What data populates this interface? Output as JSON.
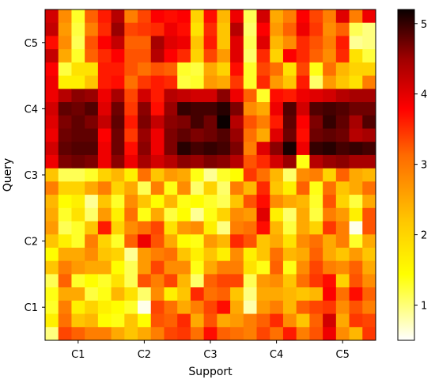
{
  "chart_data": {
    "type": "heatmap",
    "title": "",
    "xlabel": "Support",
    "ylabel": "Query",
    "x_tick_labels": [
      "C1",
      "C2",
      "C3",
      "C4",
      "C5"
    ],
    "y_tick_labels": [
      "C5",
      "C4",
      "C3",
      "C2",
      "C1"
    ],
    "colormap": "hot_r",
    "colorbar": {
      "min": 0.5,
      "max": 5.2,
      "ticks": [
        1,
        2,
        3,
        4,
        5
      ]
    },
    "grid": false,
    "legend": "colorbar-right",
    "rows": 25,
    "cols": 25,
    "values": [
      [
        3.8,
        2.5,
        1.5,
        2.8,
        3.3,
        4.0,
        2.6,
        3.0,
        3.5,
        3.4,
        3.5,
        2.0,
        3.4,
        2.2,
        3.6,
        1.3,
        3.8,
        2.3,
        2.6,
        3.5,
        3.0,
        2.6,
        3.7,
        2.6,
        3.6
      ],
      [
        3.9,
        2.4,
        1.4,
        2.6,
        3.2,
        4.2,
        3.0,
        3.1,
        3.2,
        3.6,
        3.4,
        1.9,
        3.2,
        2.1,
        4.0,
        1.2,
        3.5,
        2.4,
        2.8,
        3.6,
        3.1,
        2.5,
        2.8,
        1.3,
        1.1
      ],
      [
        3.4,
        2.5,
        1.3,
        2.9,
        3.5,
        3.9,
        2.8,
        2.8,
        4.1,
        3.7,
        3.6,
        2.1,
        3.3,
        2.1,
        3.7,
        1.3,
        3.7,
        2.2,
        2.5,
        3.2,
        2.9,
        2.6,
        3.3,
        1.0,
        1.1
      ],
      [
        3.9,
        2.3,
        1.5,
        2.8,
        3.2,
        3.5,
        2.9,
        2.9,
        4.0,
        3.5,
        3.2,
        2.0,
        3.0,
        2.4,
        3.7,
        1.2,
        3.2,
        2.0,
        3.5,
        3.2,
        2.8,
        2.5,
        3.2,
        1.9,
        1.4
      ],
      [
        3.5,
        1.4,
        1.9,
        1.9,
        3.3,
        3.3,
        2.9,
        2.7,
        2.9,
        2.8,
        1.5,
        1.4,
        2.3,
        2.0,
        3.4,
        1.5,
        3.0,
        2.7,
        1.9,
        3.0,
        1.6,
        2.7,
        2.2,
        2.0,
        2.0
      ],
      [
        3.6,
        1.8,
        1.8,
        2.1,
        3.3,
        3.4,
        2.7,
        3.1,
        3.3,
        3.2,
        1.4,
        1.5,
        2.4,
        2.3,
        3.1,
        1.5,
        3.2,
        2.4,
        2.1,
        3.3,
        1.2,
        2.4,
        2.1,
        1.9,
        2.6
      ],
      [
        3.6,
        4.0,
        4.3,
        4.2,
        3.6,
        4.1,
        3.0,
        3.8,
        3.3,
        4.0,
        3.9,
        3.8,
        3.8,
        4.3,
        3.6,
        2.8,
        1.5,
        3.4,
        3.3,
        3.6,
        3.7,
        3.8,
        4.0,
        4.1,
        4.1
      ],
      [
        3.8,
        4.6,
        4.5,
        4.7,
        3.7,
        4.5,
        3.1,
        4.3,
        3.4,
        4.2,
        4.9,
        4.8,
        4.8,
        5.0,
        4.4,
        2.5,
        2.3,
        3.6,
        4.7,
        3.8,
        4.7,
        4.8,
        4.7,
        4.5,
        4.5
      ],
      [
        3.7,
        4.4,
        4.6,
        4.4,
        3.9,
        4.6,
        3.3,
        4.4,
        3.9,
        4.3,
        4.4,
        4.8,
        4.5,
        5.2,
        4.0,
        2.9,
        2.6,
        3.3,
        4.6,
        3.5,
        4.4,
        4.9,
        4.6,
        4.1,
        4.7
      ],
      [
        3.6,
        4.5,
        4.6,
        4.6,
        3.5,
        4.5,
        3.1,
        4.2,
        3.6,
        4.4,
        4.6,
        4.4,
        4.5,
        4.7,
        4.2,
        2.7,
        2.3,
        3.7,
        4.5,
        3.4,
        4.5,
        4.6,
        4.5,
        4.0,
        4.1
      ],
      [
        3.8,
        4.6,
        4.7,
        4.7,
        3.6,
        4.5,
        3.4,
        4.3,
        3.6,
        4.4,
        5.0,
        4.8,
        4.9,
        4.8,
        4.4,
        2.6,
        3.7,
        4.3,
        5.1,
        3.6,
        4.9,
        5.0,
        4.8,
        4.9,
        4.8
      ],
      [
        3.6,
        4.4,
        4.5,
        4.4,
        3.6,
        4.3,
        3.6,
        4.1,
        3.8,
        4.0,
        4.3,
        4.2,
        4.4,
        4.3,
        4.0,
        2.9,
        3.2,
        3.8,
        4.2,
        1.6,
        4.0,
        4.2,
        4.3,
        4.1,
        4.1
      ],
      [
        2.1,
        1.3,
        1.3,
        1.5,
        2.0,
        2.2,
        1.8,
        2.7,
        2.1,
        2.4,
        2.3,
        1.6,
        1.0,
        1.5,
        1.7,
        3.1,
        2.7,
        2.2,
        1.2,
        2.5,
        2.6,
        2.0,
        2.8,
        2.3,
        2.2
      ],
      [
        2.6,
        2.0,
        2.0,
        2.3,
        2.6,
        2.0,
        2.3,
        1.3,
        2.6,
        1.6,
        2.5,
        1.2,
        2.0,
        1.2,
        2.6,
        2.2,
        3.2,
        2.1,
        1.8,
        2.8,
        1.6,
        2.7,
        2.1,
        2.3,
        2.7
      ],
      [
        2.2,
        1.7,
        1.8,
        1.0,
        2.1,
        1.5,
        2.5,
        2.1,
        1.7,
        2.2,
        1.6,
        1.7,
        1.5,
        1.3,
        2.1,
        2.9,
        3.4,
        2.5,
        2.3,
        2.2,
        1.5,
        2.9,
        2.0,
        1.4,
        2.3
      ],
      [
        2.3,
        1.5,
        1.9,
        1.2,
        2.4,
        1.8,
        2.7,
        1.6,
        2.3,
        1.4,
        1.7,
        1.0,
        1.6,
        2.0,
        2.5,
        2.4,
        3.7,
        1.8,
        1.2,
        2.3,
        1.4,
        2.6,
        2.4,
        1.8,
        2.9
      ],
      [
        2.4,
        1.3,
        1.5,
        2.1,
        3.3,
        2.0,
        2.5,
        2.7,
        3.0,
        1.9,
        2.4,
        2.5,
        1.8,
        1.1,
        2.6,
        2.7,
        3.4,
        2.2,
        1.4,
        2.3,
        2.0,
        3.1,
        2.6,
        0.6,
        2.9
      ],
      [
        2.1,
        1.8,
        1.5,
        2.6,
        2.0,
        1.5,
        2.8,
        3.6,
        2.9,
        2.3,
        1.7,
        1.6,
        2.4,
        2.2,
        3.2,
        2.9,
        2.1,
        2.3,
        1.9,
        2.5,
        2.7,
        2.3,
        2.6,
        1.5,
        2.3
      ],
      [
        1.7,
        2.3,
        2.3,
        2.5,
        2.1,
        2.0,
        1.0,
        2.4,
        2.6,
        2.7,
        2.1,
        1.8,
        2.1,
        1.8,
        2.5,
        1.8,
        2.1,
        2.7,
        2.2,
        2.3,
        2.8,
        2.3,
        2.1,
        2.4,
        2.1
      ],
      [
        2.1,
        2.6,
        2.4,
        2.3,
        2.3,
        1.7,
        1.3,
        2.4,
        3.0,
        2.5,
        2.5,
        1.6,
        2.3,
        2.6,
        2.6,
        1.9,
        1.6,
        2.8,
        1.6,
        2.5,
        3.0,
        2.6,
        2.5,
        2.8,
        2.3
      ],
      [
        1.3,
        2.8,
        1.5,
        1.7,
        1.5,
        1.9,
        1.3,
        2.9,
        2.6,
        3.0,
        2.2,
        1.2,
        2.8,
        3.0,
        3.0,
        1.3,
        2.4,
        2.5,
        2.1,
        2.7,
        3.1,
        3.4,
        2.0,
        2.9,
        2.5
      ],
      [
        1.6,
        2.3,
        2.3,
        1.4,
        1.6,
        2.2,
        1.9,
        1.2,
        2.5,
        1.8,
        2.1,
        3.2,
        2.7,
        2.8,
        2.1,
        1.1,
        2.3,
        2.3,
        2.2,
        2.1,
        2.2,
        3.5,
        2.7,
        3.4,
        2.8
      ],
      [
        1.5,
        2.6,
        1.8,
        2.0,
        1.8,
        1.7,
        1.5,
        0.6,
        3.0,
        2.7,
        2.3,
        2.6,
        3.0,
        3.4,
        2.3,
        0.9,
        2.4,
        2.6,
        2.2,
        2.8,
        3.0,
        3.1,
        2.5,
        2.9,
        2.6
      ],
      [
        1.8,
        2.7,
        2.1,
        2.2,
        1.7,
        1.6,
        2.1,
        1.7,
        2.9,
        2.8,
        3.2,
        2.3,
        2.9,
        2.3,
        2.4,
        2.6,
        2.8,
        3.2,
        2.5,
        2.1,
        2.8,
        3.8,
        2.3,
        3.1,
        3.0
      ],
      [
        1.1,
        3.0,
        2.8,
        2.6,
        2.6,
        2.3,
        2.1,
        2.3,
        2.6,
        3.0,
        3.1,
        2.7,
        3.4,
        2.8,
        2.7,
        2.6,
        3.0,
        2.7,
        3.3,
        2.6,
        2.9,
        3.6,
        2.5,
        2.2,
        3.1
      ]
    ]
  }
}
